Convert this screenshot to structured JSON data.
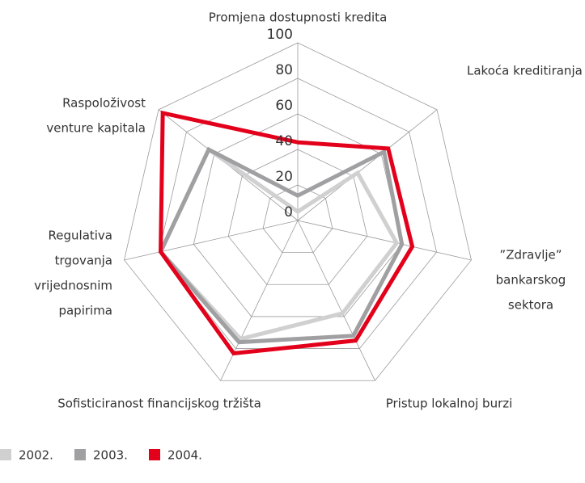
{
  "chart_data": {
    "type": "radar",
    "categories": [
      [
        "Promjena dostupnosti kredita"
      ],
      [
        "Lakoća kreditiranja"
      ],
      [
        "”Zdravlje”",
        "bankarskog",
        "sektora"
      ],
      [
        "Pristup lokalnoj burzi"
      ],
      [
        "Sofisticiranost financijskog tržišta"
      ],
      [
        "Regulativa",
        "trgovanja",
        "vrijednosnim",
        "papirima"
      ],
      [
        "Raspoloživost",
        "venture kapitala"
      ]
    ],
    "series": [
      {
        "name": "2002.",
        "color": "#d0d0d0",
        "values": [
          5,
          43,
          57,
          58,
          74,
          79,
          64
        ]
      },
      {
        "name": "2003.",
        "color": "#a0a0a3",
        "values": [
          14,
          62,
          60,
          72,
          76,
          79,
          64
        ]
      },
      {
        "name": "2004.",
        "color": "#e3001b",
        "values": [
          44,
          65,
          66,
          75,
          83,
          79,
          97
        ]
      }
    ],
    "rlim": [
      0,
      100
    ],
    "rticks": [
      0,
      20,
      40,
      60,
      80,
      100
    ],
    "grid": true,
    "legend": "bottom-left"
  }
}
